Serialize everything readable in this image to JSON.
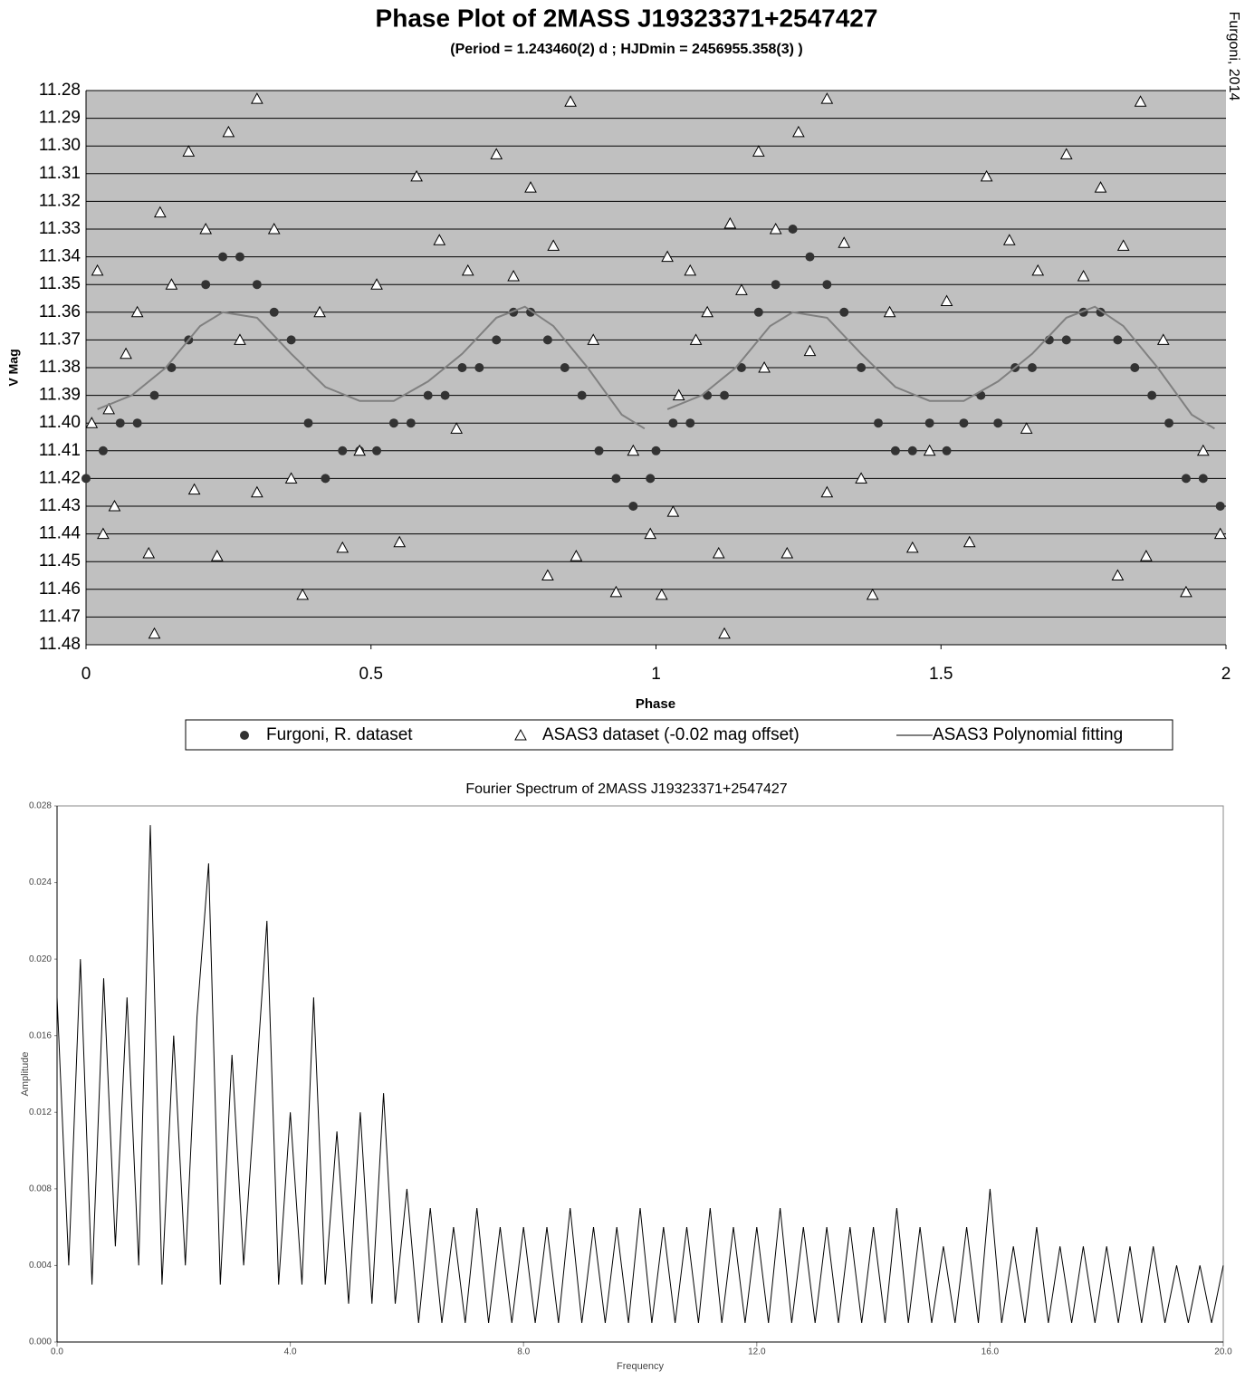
{
  "chart_data": [
    {
      "type": "scatter",
      "title": "Phase Plot of 2MASS J19323371+2547427",
      "subtitle": "(Period = 1.243460(2) d ; HJDmin = 2456955.358(3) )",
      "annotation": "Furgoni, 2014",
      "xlabel": "Phase",
      "ylabel": "V Mag",
      "xlim": [
        0,
        2
      ],
      "xticks": [
        0,
        0.5,
        1,
        1.5,
        2
      ],
      "ylim": [
        11.48,
        11.28
      ],
      "yticks": [
        11.28,
        11.29,
        {
          "value": 11.3,
          "label": "11.30"
        },
        11.31,
        11.32,
        11.33,
        11.34,
        11.35,
        11.36,
        11.37,
        11.38,
        11.39,
        {
          "value": 11.4,
          "label": "11.40"
        },
        11.41,
        11.42,
        11.43,
        11.44,
        11.45,
        11.46,
        11.47,
        11.48
      ],
      "grid": true,
      "legend": "bottom",
      "background": "#c0c0c0",
      "series": [
        {
          "name": "Furgoni, R. dataset",
          "color": "#333333",
          "marker": "circle",
          "x": [
            0.0,
            0.03,
            0.06,
            0.09,
            0.12,
            0.15,
            0.18,
            0.21,
            0.24,
            0.27,
            0.3,
            0.33,
            0.36,
            0.39,
            0.42,
            0.45,
            0.48,
            0.51,
            0.54,
            0.57,
            0.6,
            0.63,
            0.66,
            0.69,
            0.72,
            0.75,
            0.78,
            0.81,
            0.84,
            0.87,
            0.9,
            0.93,
            0.96,
            0.99,
            1.0,
            1.03,
            1.06,
            1.09,
            1.12,
            1.15,
            1.18,
            1.21,
            1.24,
            1.27,
            1.3,
            1.33,
            1.36,
            1.39,
            1.42,
            1.45,
            1.48,
            1.51,
            1.54,
            1.57,
            1.6,
            1.63,
            1.66,
            1.69,
            1.72,
            1.75,
            1.78,
            1.81,
            1.84,
            1.87,
            1.9,
            1.93,
            1.96,
            1.99
          ],
          "values": [
            11.42,
            11.41,
            11.4,
            11.4,
            11.39,
            11.38,
            11.37,
            11.35,
            11.34,
            11.34,
            11.35,
            11.36,
            11.37,
            11.4,
            11.42,
            11.41,
            11.41,
            11.41,
            11.4,
            11.4,
            11.39,
            11.39,
            11.38,
            11.38,
            11.37,
            11.36,
            11.36,
            11.37,
            11.38,
            11.39,
            11.41,
            11.42,
            11.43,
            11.42,
            11.41,
            11.4,
            11.4,
            11.39,
            11.39,
            11.38,
            11.36,
            11.35,
            11.33,
            11.34,
            11.35,
            11.36,
            11.38,
            11.4,
            11.41,
            11.41,
            11.4,
            11.41,
            11.4,
            11.39,
            11.4,
            11.38,
            11.38,
            11.37,
            11.37,
            11.36,
            11.36,
            11.37,
            11.38,
            11.39,
            11.4,
            11.42,
            11.42,
            11.43
          ]
        },
        {
          "name": "ASAS3 dataset (-0.02 mag offset)",
          "color": "#ffffff",
          "marker": "triangle",
          "x": [
            0.01,
            0.02,
            0.03,
            0.04,
            0.05,
            0.07,
            0.09,
            0.11,
            0.12,
            0.13,
            0.15,
            0.18,
            0.19,
            0.21,
            0.23,
            0.25,
            0.27,
            0.3,
            0.3,
            0.33,
            0.36,
            0.38,
            0.41,
            0.45,
            0.48,
            0.51,
            0.55,
            0.58,
            0.62,
            0.65,
            0.67,
            0.72,
            0.75,
            0.78,
            0.81,
            0.82,
            0.85,
            0.86,
            0.89,
            0.93,
            0.96,
            0.99,
            1.01,
            1.02,
            1.03,
            1.04,
            1.06,
            1.07,
            1.09,
            1.11,
            1.12,
            1.13,
            1.15,
            1.18,
            1.19,
            1.21,
            1.23,
            1.25,
            1.27,
            1.3,
            1.3,
            1.33,
            1.36,
            1.38,
            1.41,
            1.45,
            1.48,
            1.51,
            1.55,
            1.58,
            1.62,
            1.65,
            1.67,
            1.72,
            1.75,
            1.78,
            1.81,
            1.82,
            1.85,
            1.86,
            1.89,
            1.93,
            1.96,
            1.99
          ],
          "values": [
            11.4,
            11.345,
            11.44,
            11.395,
            11.43,
            11.375,
            11.36,
            11.447,
            11.476,
            11.324,
            11.35,
            11.302,
            11.424,
            11.33,
            11.448,
            11.295,
            11.37,
            11.283,
            11.425,
            11.33,
            11.42,
            11.462,
            11.36,
            11.445,
            11.41,
            11.35,
            11.443,
            11.311,
            11.334,
            11.402,
            11.345,
            11.303,
            11.347,
            11.315,
            11.455,
            11.336,
            11.284,
            11.448,
            11.37,
            11.461,
            11.41,
            11.44,
            11.462,
            11.34,
            11.432,
            11.39,
            11.345,
            11.37,
            11.36,
            11.447,
            11.476,
            11.328,
            11.352,
            11.302,
            11.38,
            11.33,
            11.447,
            11.295,
            11.374,
            11.283,
            11.425,
            11.335,
            11.42,
            11.462,
            11.36,
            11.445,
            11.41,
            11.356,
            11.443,
            11.311,
            11.334,
            11.402,
            11.345,
            11.303,
            11.347,
            11.315,
            11.455,
            11.336,
            11.284,
            11.448,
            11.37,
            11.461,
            11.41,
            11.44
          ]
        },
        {
          "name": "ASAS3 Polynomial fitting",
          "color": "#808080",
          "marker": "line",
          "x": [
            0.02,
            0.08,
            0.14,
            0.2,
            0.24,
            0.3,
            0.36,
            0.42,
            0.48,
            0.54,
            0.6,
            0.66,
            0.72,
            0.77,
            0.82,
            0.88,
            0.94,
            0.98,
            1.0,
            1.02,
            1.08,
            1.14,
            1.2,
            1.24,
            1.3,
            1.36,
            1.42,
            1.48,
            1.54,
            1.6,
            1.66,
            1.72,
            1.77,
            1.82,
            1.88,
            1.94,
            1.98
          ],
          "values": [
            11.395,
            11.39,
            11.38,
            11.365,
            11.36,
            11.362,
            11.375,
            11.387,
            11.392,
            11.392,
            11.385,
            11.375,
            11.362,
            11.358,
            11.365,
            11.38,
            11.397,
            11.402,
            null,
            11.395,
            11.39,
            11.38,
            11.365,
            11.36,
            11.362,
            11.375,
            11.387,
            11.392,
            11.392,
            11.385,
            11.375,
            11.362,
            11.358,
            11.365,
            11.38,
            11.397,
            11.402
          ]
        }
      ]
    },
    {
      "type": "line",
      "title": "Fourier Spectrum of 2MASS J19323371+2547427",
      "xlabel": "Frequency",
      "ylabel": "Amplitude",
      "xlim": [
        0,
        20
      ],
      "xticks": [
        {
          "value": 0,
          "label": "0.0"
        },
        {
          "value": 4,
          "label": "4.0"
        },
        {
          "value": 8,
          "label": "8.0"
        },
        {
          "value": 12,
          "label": "12.0"
        },
        {
          "value": 16,
          "label": "16.0"
        },
        {
          "value": 20,
          "label": "20.0"
        }
      ],
      "ylim": [
        0,
        0.028
      ],
      "yticks": [
        {
          "value": 0,
          "label": "0.000"
        },
        {
          "value": 0.004,
          "label": "0.004"
        },
        {
          "value": 0.008,
          "label": "0.008"
        },
        {
          "value": 0.012,
          "label": "0.012"
        },
        {
          "value": 0.016,
          "label": "0.016"
        },
        {
          "value": 0.02,
          "label": "0.020"
        },
        {
          "value": 0.024,
          "label": "0.024"
        },
        {
          "value": 0.028,
          "label": "0.028"
        }
      ],
      "series": [
        {
          "color": "#000000",
          "x": [
            0.0,
            0.2,
            0.4,
            0.6,
            0.8,
            1.0,
            1.2,
            1.4,
            1.6,
            1.8,
            2.0,
            2.2,
            2.4,
            2.6,
            2.8,
            3.0,
            3.2,
            3.4,
            3.6,
            3.8,
            4.0,
            4.2,
            4.4,
            4.6,
            4.8,
            5.0,
            5.2,
            5.4,
            5.6,
            5.8,
            6.0,
            6.2,
            6.4,
            6.6,
            6.8,
            7.0,
            7.2,
            7.4,
            7.6,
            7.8,
            8.0,
            8.2,
            8.4,
            8.6,
            8.8,
            9.0,
            9.2,
            9.4,
            9.6,
            9.8,
            10.0,
            10.2,
            10.4,
            10.6,
            10.8,
            11.0,
            11.2,
            11.4,
            11.6,
            11.8,
            12.0,
            12.2,
            12.4,
            12.6,
            12.8,
            13.0,
            13.2,
            13.4,
            13.6,
            13.8,
            14.0,
            14.2,
            14.4,
            14.6,
            14.8,
            15.0,
            15.2,
            15.4,
            15.6,
            15.8,
            16.0,
            16.2,
            16.4,
            16.6,
            16.8,
            17.0,
            17.2,
            17.4,
            17.6,
            17.8,
            18.0,
            18.2,
            18.4,
            18.6,
            18.8,
            19.0,
            19.2,
            19.4,
            19.6,
            19.8,
            20.0
          ],
          "values": [
            0.018,
            0.004,
            0.02,
            0.003,
            0.019,
            0.005,
            0.018,
            0.004,
            0.027,
            0.003,
            0.016,
            0.004,
            0.017,
            0.025,
            0.003,
            0.015,
            0.004,
            0.013,
            0.022,
            0.003,
            0.012,
            0.003,
            0.018,
            0.003,
            0.011,
            0.002,
            0.012,
            0.002,
            0.013,
            0.002,
            0.008,
            0.001,
            0.007,
            0.001,
            0.006,
            0.001,
            0.007,
            0.001,
            0.006,
            0.001,
            0.006,
            0.001,
            0.006,
            0.001,
            0.007,
            0.001,
            0.006,
            0.001,
            0.006,
            0.001,
            0.007,
            0.001,
            0.006,
            0.001,
            0.006,
            0.001,
            0.007,
            0.001,
            0.006,
            0.001,
            0.006,
            0.001,
            0.007,
            0.001,
            0.006,
            0.001,
            0.006,
            0.001,
            0.006,
            0.001,
            0.006,
            0.001,
            0.007,
            0.001,
            0.006,
            0.001,
            0.005,
            0.001,
            0.006,
            0.001,
            0.008,
            0.001,
            0.005,
            0.001,
            0.006,
            0.001,
            0.005,
            0.001,
            0.005,
            0.001,
            0.005,
            0.001,
            0.005,
            0.001,
            0.005,
            0.001,
            0.004,
            0.001,
            0.004,
            0.001,
            0.004
          ]
        }
      ]
    }
  ]
}
